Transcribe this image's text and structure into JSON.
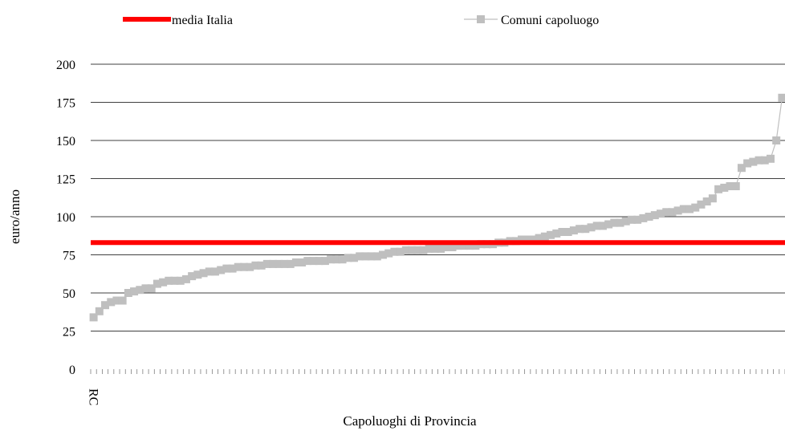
{
  "chart_data": {
    "type": "line",
    "xlabel": "Capoluoghi di Provincia",
    "ylabel": "euro/anno",
    "ylim": [
      0,
      200
    ],
    "yticks": [
      0,
      25,
      50,
      75,
      100,
      125,
      150,
      175,
      200
    ],
    "grid": true,
    "legend_position": "top",
    "x_first_label": "RC",
    "series": [
      {
        "name": "media Italia",
        "kind": "reference-line",
        "color": "#ff0000",
        "value": 83
      },
      {
        "name": "Comuni capoluogo",
        "kind": "line-markers",
        "color": "#bfbfbf",
        "values": [
          34,
          38,
          42,
          44,
          45,
          45,
          50,
          51,
          52,
          53,
          53,
          56,
          57,
          58,
          58,
          58,
          59,
          61,
          62,
          63,
          64,
          64,
          65,
          66,
          66,
          67,
          67,
          67,
          68,
          68,
          69,
          69,
          69,
          69,
          69,
          70,
          70,
          71,
          71,
          71,
          71,
          72,
          72,
          72,
          73,
          73,
          74,
          74,
          74,
          74,
          75,
          76,
          77,
          77,
          78,
          78,
          78,
          78,
          79,
          79,
          79,
          80,
          80,
          81,
          81,
          81,
          81,
          82,
          82,
          82,
          83,
          83,
          84,
          84,
          85,
          85,
          85,
          86,
          87,
          88,
          89,
          90,
          90,
          91,
          92,
          92,
          93,
          94,
          94,
          95,
          96,
          96,
          97,
          98,
          98,
          99,
          100,
          101,
          102,
          103,
          103,
          104,
          105,
          105,
          106,
          108,
          110,
          112,
          118,
          119,
          120,
          120,
          132,
          135,
          136,
          137,
          137,
          138,
          150,
          178
        ]
      }
    ]
  }
}
